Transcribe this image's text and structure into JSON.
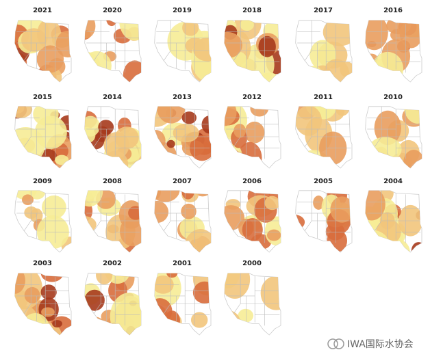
{
  "maps": [
    {
      "year": "2021"
    },
    {
      "year": "2020"
    },
    {
      "year": "2019"
    },
    {
      "year": "2018"
    },
    {
      "year": "2017"
    },
    {
      "year": "2016"
    },
    {
      "year": "2015"
    },
    {
      "year": "2014"
    },
    {
      "year": "2013"
    },
    {
      "year": "2012"
    },
    {
      "year": "2011"
    },
    {
      "year": "2010"
    },
    {
      "year": "2009"
    },
    {
      "year": "2008"
    },
    {
      "year": "2007"
    },
    {
      "year": "2006"
    },
    {
      "year": "2005"
    },
    {
      "year": "2004"
    },
    {
      "year": "2003"
    },
    {
      "year": "2002"
    },
    {
      "year": "2001"
    },
    {
      "year": "2000"
    }
  ],
  "watermark": "IWA国际水协会"
}
